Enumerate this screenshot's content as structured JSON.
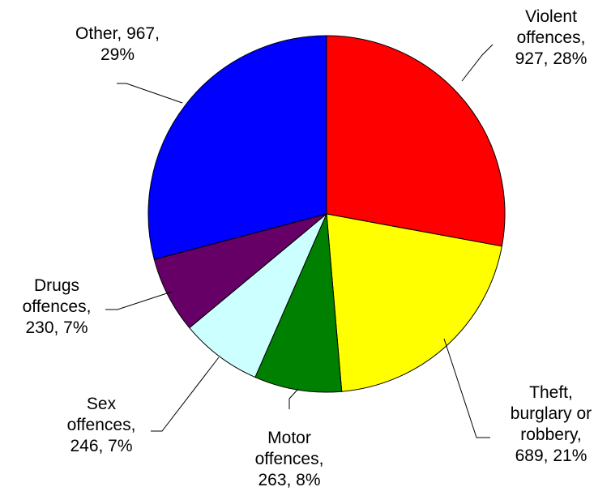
{
  "chart_data": {
    "type": "pie",
    "title": "",
    "start_angle_deg": 0,
    "direction": "clockwise",
    "slices": [
      {
        "label": "Violent offences",
        "value": 927,
        "percent": "28%",
        "color": "#ff0000",
        "text": [
          "Violent",
          "offences,",
          "927, 28%"
        ]
      },
      {
        "label": "Theft, burglary or robbery",
        "value": 689,
        "percent": "21%",
        "color": "#ffff00",
        "text": [
          "Theft,",
          "burglary or",
          "robbery,",
          "689, 21%"
        ]
      },
      {
        "label": "Motor offences",
        "value": 263,
        "percent": "8%",
        "color": "#008000",
        "text": [
          "Motor",
          "offences,",
          "263, 8%"
        ]
      },
      {
        "label": "Sex offences",
        "value": 246,
        "percent": "7%",
        "color": "#ccffff",
        "text": [
          "Sex",
          "offences,",
          "246, 7%"
        ]
      },
      {
        "label": "Drugs offences",
        "value": 230,
        "percent": "7%",
        "color": "#660066",
        "text": [
          "Drugs",
          "offences,",
          "230, 7%"
        ]
      },
      {
        "label": "Other",
        "value": 967,
        "percent": "29%",
        "color": "#0000ff",
        "text": [
          "Other, 967,",
          "29%"
        ]
      }
    ]
  }
}
